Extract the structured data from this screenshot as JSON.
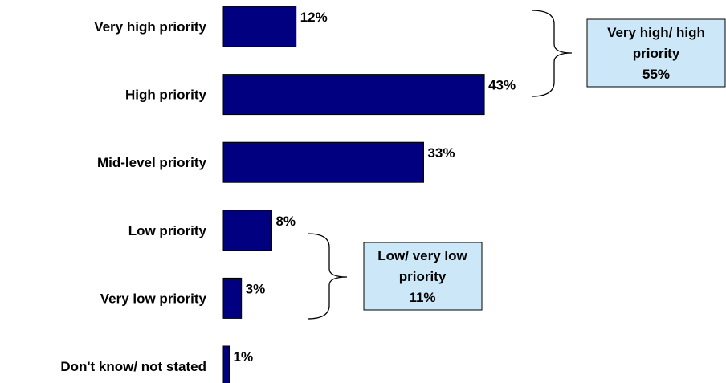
{
  "chart_data": {
    "type": "bar",
    "orientation": "horizontal",
    "categories": [
      "Very high priority",
      "High priority",
      "Mid-level priority",
      "Low priority",
      "Very low priority",
      "Don't know/ not stated"
    ],
    "values": [
      12,
      43,
      33,
      8,
      3,
      1
    ],
    "value_labels": [
      "12%",
      "43%",
      "33%",
      "8%",
      "3%",
      "1%"
    ],
    "bar_color": "#000080",
    "xlim": [
      0,
      100
    ],
    "grid": false,
    "legend": "none"
  },
  "callouts": [
    {
      "lines": [
        "Very high/ high",
        "priority",
        "55%"
      ],
      "groups": [
        "Very high priority",
        "High priority"
      ],
      "fill": "#cce8f8"
    },
    {
      "lines": [
        "Low/ very low",
        "priority",
        "11%"
      ],
      "groups": [
        "Low priority",
        "Very low priority"
      ],
      "fill": "#cce8f8"
    }
  ]
}
